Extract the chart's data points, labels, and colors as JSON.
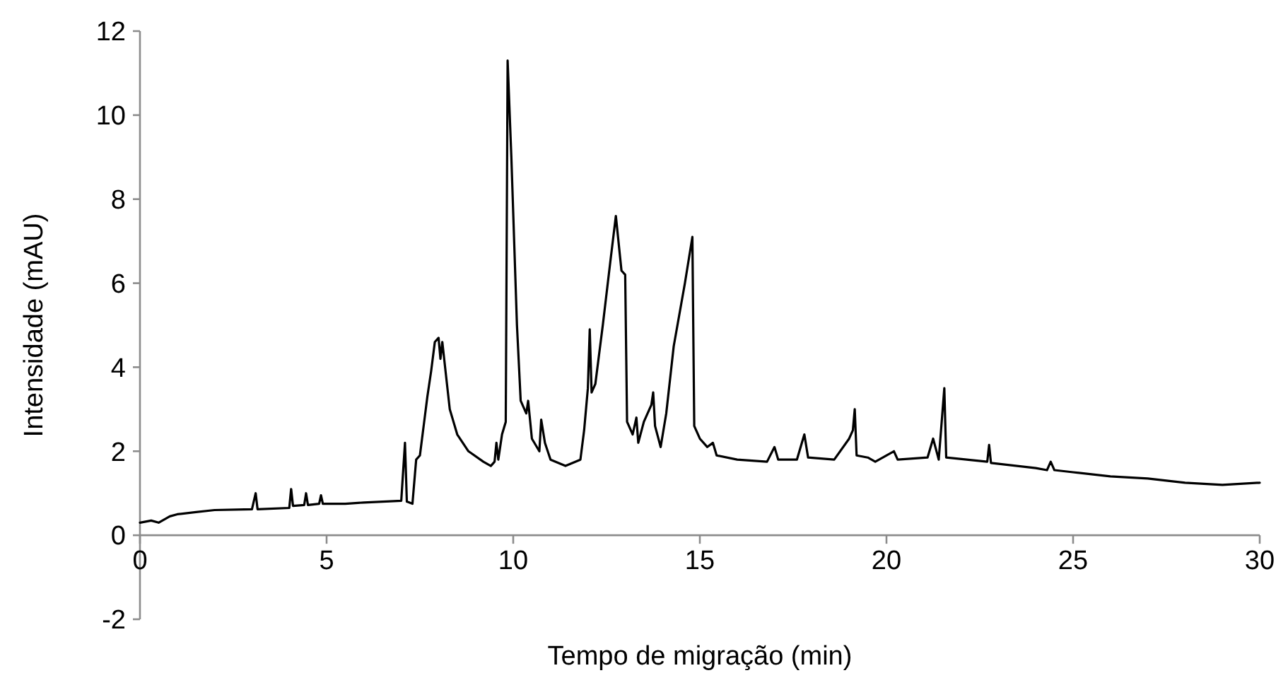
{
  "chart_data": {
    "type": "line",
    "xlabel": "Tempo de migração (min)",
    "ylabel": "Intensidade (mAU)",
    "xlim": [
      0,
      30
    ],
    "xticks": [
      0,
      5,
      10,
      15,
      20,
      25,
      30
    ],
    "ylim": [
      -2,
      12
    ],
    "yticks": [
      -2,
      0,
      2,
      4,
      6,
      8,
      10,
      12
    ],
    "grid": false,
    "marker": "none",
    "line_style": "solid",
    "series": [
      {
        "color": "#000000",
        "x": [
          0,
          0.3,
          0.5,
          0.8,
          1.0,
          1.5,
          2,
          3,
          3.1,
          3.15,
          4,
          4.05,
          4.1,
          4.4,
          4.45,
          4.5,
          4.8,
          4.85,
          4.9,
          5.5,
          6,
          6.5,
          7.0,
          7.1,
          7.15,
          7.3,
          7.4,
          7.5,
          7.6,
          7.7,
          7.8,
          7.9,
          8.0,
          8.05,
          8.1,
          8.2,
          8.3,
          8.5,
          8.8,
          9.2,
          9.4,
          9.5,
          9.55,
          9.6,
          9.7,
          9.8,
          9.85,
          9.95,
          10.1,
          10.2,
          10.35,
          10.4,
          10.5,
          10.7,
          10.75,
          10.85,
          11.0,
          11.4,
          11.8,
          11.9,
          12.0,
          12.05,
          12.1,
          12.2,
          12.4,
          12.6,
          12.75,
          12.9,
          13.0,
          13.05,
          13.2,
          13.3,
          13.35,
          13.5,
          13.7,
          13.75,
          13.8,
          13.95,
          14.1,
          14.3,
          14.6,
          14.8,
          14.85,
          15.0,
          15.2,
          15.35,
          15.45,
          16,
          16.8,
          17.0,
          17.1,
          17.6,
          17.8,
          17.9,
          18.6,
          19.0,
          19.1,
          19.15,
          19.2,
          19.5,
          19.7,
          20.2,
          20.3,
          21.1,
          21.25,
          21.4,
          21.55,
          21.6,
          22.7,
          22.75,
          22.8,
          24.0,
          24.3,
          24.4,
          24.5,
          25,
          26,
          27,
          28,
          29,
          30
        ],
        "values": [
          0.3,
          0.35,
          0.3,
          0.45,
          0.5,
          0.55,
          0.6,
          0.62,
          1.0,
          0.62,
          0.65,
          1.1,
          0.7,
          0.72,
          1.0,
          0.72,
          0.75,
          0.95,
          0.75,
          0.75,
          0.78,
          0.8,
          0.82,
          2.2,
          0.8,
          0.75,
          1.8,
          1.9,
          2.6,
          3.3,
          3.9,
          4.6,
          4.7,
          4.2,
          4.6,
          3.8,
          3.0,
          2.4,
          2.0,
          1.75,
          1.65,
          1.75,
          2.2,
          1.8,
          2.4,
          2.7,
          11.3,
          9.0,
          5.0,
          3.2,
          2.9,
          3.2,
          2.3,
          2.0,
          2.75,
          2.2,
          1.8,
          1.65,
          1.8,
          2.5,
          3.5,
          4.9,
          3.4,
          3.6,
          5.0,
          6.5,
          7.6,
          6.3,
          6.2,
          2.7,
          2.4,
          2.8,
          2.2,
          2.7,
          3.1,
          3.4,
          2.6,
          2.1,
          2.9,
          4.5,
          6.0,
          7.1,
          2.6,
          2.3,
          2.1,
          2.2,
          1.9,
          1.8,
          1.75,
          2.1,
          1.8,
          1.8,
          2.4,
          1.85,
          1.8,
          2.3,
          2.5,
          3.0,
          1.9,
          1.85,
          1.75,
          2.0,
          1.8,
          1.85,
          2.3,
          1.8,
          3.5,
          1.85,
          1.75,
          2.15,
          1.72,
          1.6,
          1.55,
          1.75,
          1.55,
          1.5,
          1.4,
          1.35,
          1.25,
          1.2,
          1.25
        ]
      }
    ]
  }
}
